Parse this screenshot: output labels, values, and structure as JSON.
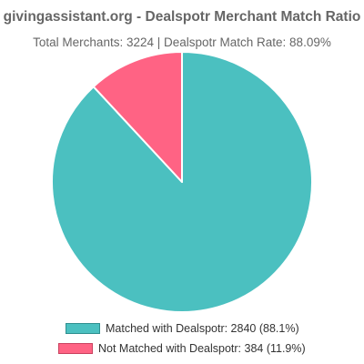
{
  "chart_data": {
    "type": "pie",
    "title": "givingassistant.org - Dealspotr Merchant Match Ratio",
    "subtitle": "Total Merchants: 3224 | Dealspotr Match Rate: 88.09%",
    "slices": [
      {
        "label": "Matched with Dealspotr: 2840 (88.1%)",
        "value": 2840,
        "color": "#4bc0c0",
        "border_color": "#2f8f8f"
      },
      {
        "label": "Not Matched with Dealspotr: 384 (11.9%)",
        "value": 384,
        "color": "#ff6384",
        "border_color": "#c9425f"
      }
    ],
    "legend_position": "bottom"
  }
}
